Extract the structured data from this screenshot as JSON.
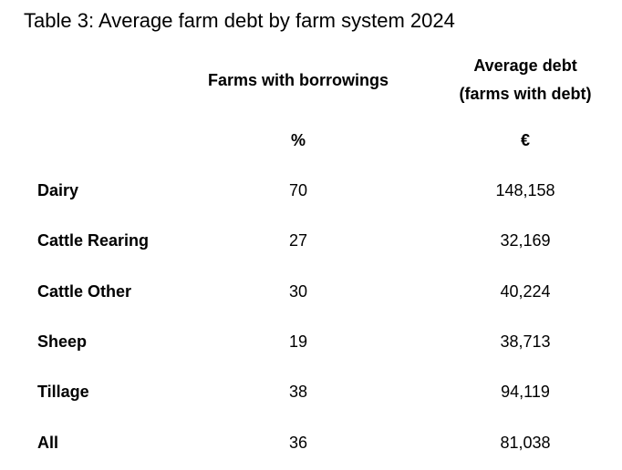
{
  "title": "Table 3: Average farm debt by farm system 2024",
  "columns": {
    "farms_with_borrowings": "Farms with borrowings",
    "average_debt_line1": "Average debt",
    "average_debt_line2": "(farms with debt)"
  },
  "units": {
    "farms_with_borrowings": "%",
    "average_debt": "€"
  },
  "rows": [
    {
      "system": "Dairy",
      "pct": "70",
      "debt": "148,158"
    },
    {
      "system": "Cattle Rearing",
      "pct": "27",
      "debt": "32,169"
    },
    {
      "system": "Cattle Other",
      "pct": "30",
      "debt": "40,224"
    },
    {
      "system": "Sheep",
      "pct": "19",
      "debt": "38,713"
    },
    {
      "system": "Tillage",
      "pct": "38",
      "debt": "94,119"
    },
    {
      "system": "All",
      "pct": "36",
      "debt": "81,038"
    }
  ]
}
